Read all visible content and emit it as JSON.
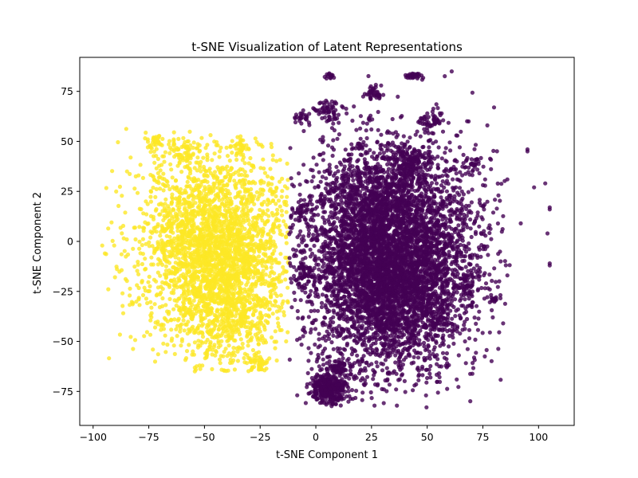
{
  "chart_data": {
    "type": "scatter",
    "title": "t-SNE Visualization of Latent Representations",
    "xlabel": "t-SNE Component 1",
    "ylabel": "t-SNE Component 2",
    "xlim": [
      -106,
      116
    ],
    "ylim": [
      -92,
      92
    ],
    "xticks": [
      -100,
      -75,
      -50,
      -25,
      0,
      25,
      50,
      75,
      100
    ],
    "yticks": [
      -75,
      -50,
      -25,
      0,
      25,
      50,
      75
    ],
    "grid": false,
    "legend": "none",
    "colors": {
      "yellow_cluster": "#fde725",
      "purple_cluster": "#440154"
    },
    "series": [
      {
        "color": "#fde725",
        "point_count": 2200,
        "center": [
          -45,
          -5
        ],
        "spread": [
          18,
          27
        ],
        "x_range": [
          -98,
          -12
        ],
        "y_range": [
          -65,
          57
        ],
        "dense_regions": [
          {
            "x": -38,
            "y": -30,
            "sx": 9,
            "sy": 18,
            "count": 500
          },
          {
            "x": -48,
            "y": 5,
            "sx": 14,
            "sy": 18,
            "count": 350
          },
          {
            "x": -72,
            "y": 50,
            "sx": 2,
            "sy": 2,
            "count": 40
          },
          {
            "x": -58,
            "y": 45,
            "sx": 3,
            "sy": 3,
            "count": 50
          },
          {
            "x": -34,
            "y": 48,
            "sx": 2,
            "sy": 2,
            "count": 30
          },
          {
            "x": -26,
            "y": -61,
            "sx": 2,
            "sy": 2,
            "count": 40
          }
        ]
      },
      {
        "color": "#440154",
        "point_count": 4500,
        "center": [
          33,
          -8
        ],
        "spread": [
          20,
          28
        ],
        "x_range": [
          -12,
          88
        ],
        "y_range": [
          -83,
          84
        ],
        "dense_regions": [
          {
            "x": 35,
            "y": -20,
            "sx": 14,
            "sy": 20,
            "count": 1100
          },
          {
            "x": 28,
            "y": 20,
            "sx": 14,
            "sy": 14,
            "count": 500
          },
          {
            "x": 6,
            "y": -74,
            "sx": 4,
            "sy": 4,
            "count": 350
          },
          {
            "x": 10,
            "y": -63,
            "sx": 3,
            "sy": 2,
            "count": 60
          },
          {
            "x": 43,
            "y": 40,
            "sx": 4,
            "sy": 4,
            "count": 120
          },
          {
            "x": 5,
            "y": 65,
            "sx": 3,
            "sy": 3,
            "count": 60
          },
          {
            "x": 26,
            "y": 74,
            "sx": 2,
            "sy": 2,
            "count": 40
          },
          {
            "x": 44,
            "y": 83,
            "sx": 2,
            "sy": 1,
            "count": 30
          },
          {
            "x": 6,
            "y": 83,
            "sx": 1,
            "sy": 1,
            "count": 15
          },
          {
            "x": 52,
            "y": 60,
            "sx": 3,
            "sy": 3,
            "count": 50
          },
          {
            "x": -6,
            "y": 62,
            "sx": 2,
            "sy": 2,
            "count": 25
          },
          {
            "x": -5,
            "y": -15,
            "sx": 2,
            "sy": 3,
            "count": 40
          },
          {
            "x": -6,
            "y": 15,
            "sx": 2,
            "sy": 2,
            "count": 25
          },
          {
            "x": 68,
            "y": -23,
            "sx": 2,
            "sy": 3,
            "count": 30
          },
          {
            "x": 70,
            "y": 39,
            "sx": 2,
            "sy": 2,
            "count": 20
          },
          {
            "x": 80,
            "y": -29,
            "sx": 1,
            "sy": 1,
            "count": 15
          },
          {
            "x": 55,
            "y": -40,
            "sx": 3,
            "sy": 3,
            "count": 40
          }
        ],
        "outliers": [
          [
            95,
            45
          ],
          [
            95,
            46
          ],
          [
            105,
            16
          ],
          [
            105,
            17
          ],
          [
            105,
            -11
          ],
          [
            105,
            -12
          ],
          [
            104,
            4
          ],
          [
            103,
            29
          ],
          [
            98,
            27
          ],
          [
            92,
            9
          ],
          [
            86,
            31
          ],
          [
            86,
            -17
          ],
          [
            83,
            -10
          ],
          [
            78,
            8
          ],
          [
            77,
            58
          ],
          [
            80,
            67
          ],
          [
            76,
            31
          ],
          [
            82,
            23
          ],
          [
            61,
            85
          ]
        ]
      }
    ]
  }
}
